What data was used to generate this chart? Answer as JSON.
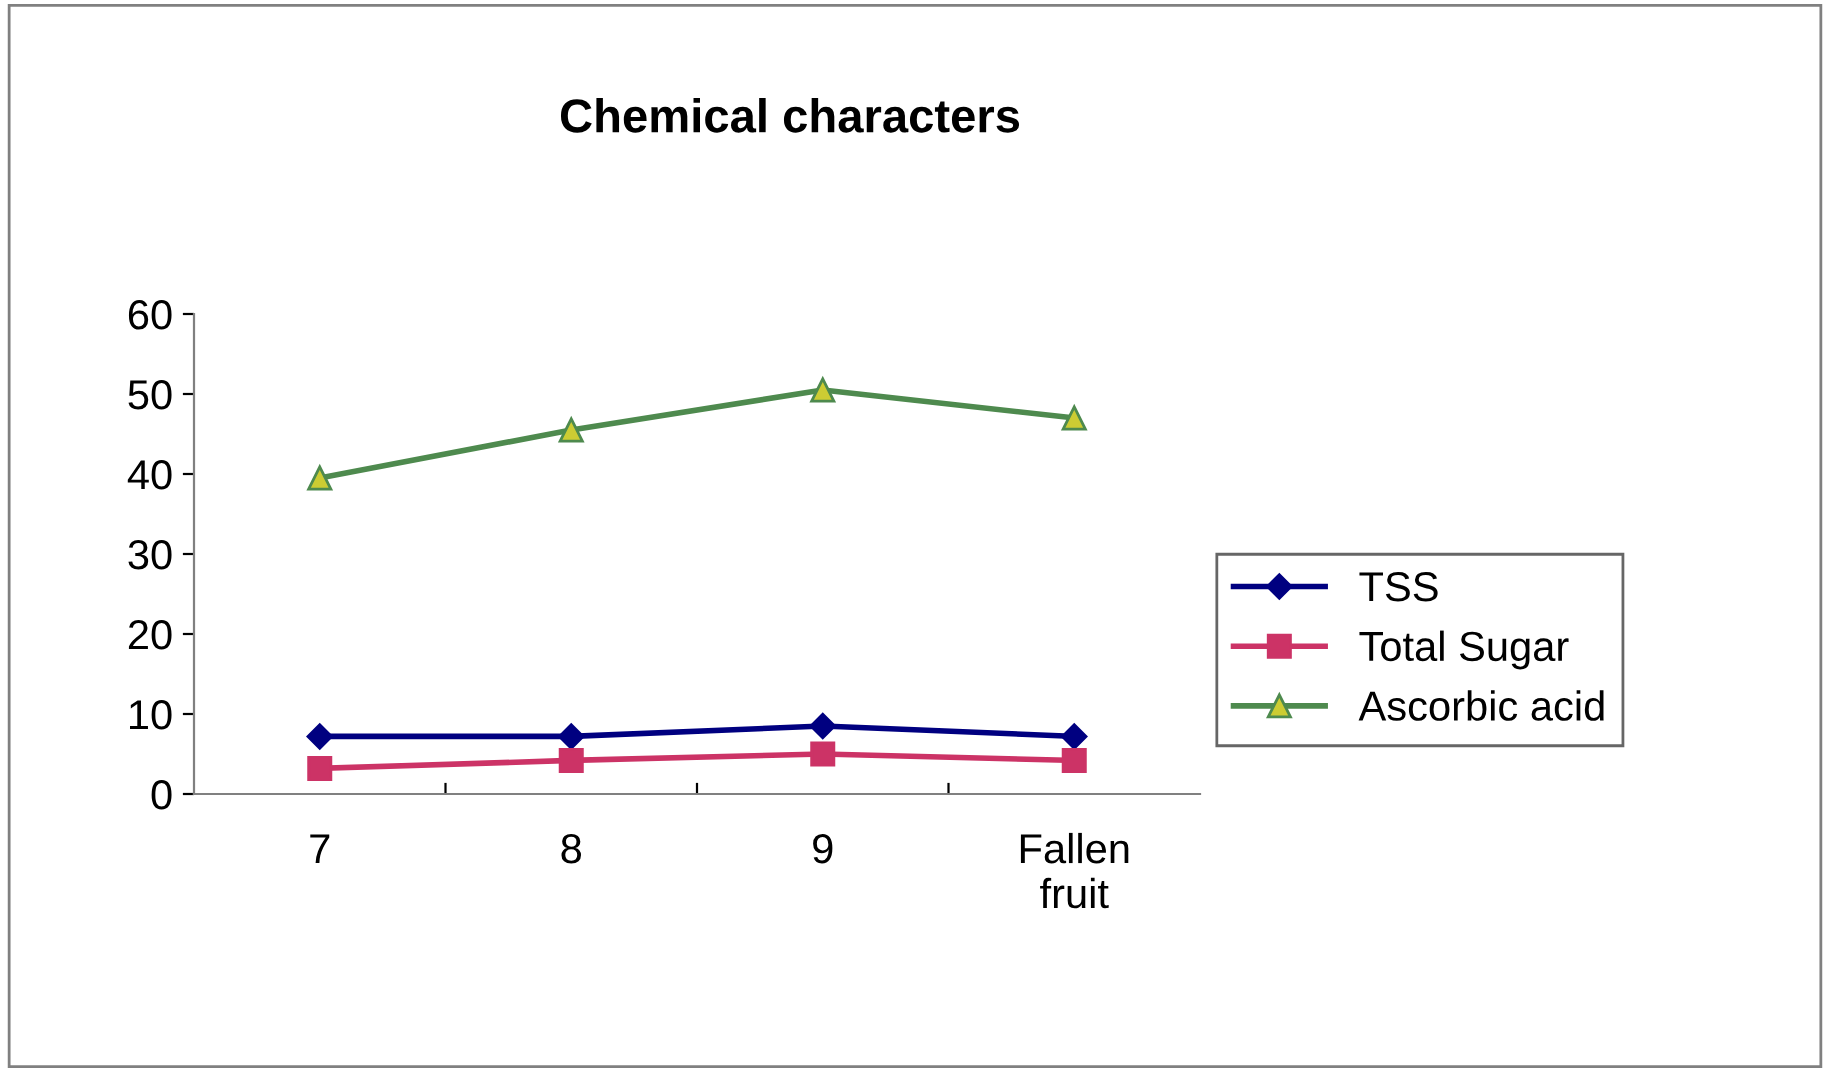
{
  "chart_data": {
    "type": "line",
    "title": "Chemical characters",
    "categories": [
      "7",
      "8",
      "9",
      "Fallen fruit"
    ],
    "series": [
      {
        "name": "TSS",
        "color": "#000080",
        "marker": "diamond",
        "values": [
          7.2,
          7.2,
          8.5,
          7.2
        ]
      },
      {
        "name": "Total Sugar",
        "color": "#cc3366",
        "marker": "square",
        "values": [
          3.2,
          4.2,
          5,
          4.2
        ]
      },
      {
        "name": "Ascorbic acid",
        "color": "#4e8a4e",
        "marker": "triangle",
        "values": [
          39.5,
          45.5,
          50.5,
          47
        ]
      }
    ],
    "ylim": [
      0,
      60
    ],
    "yticks": [
      0,
      10,
      20,
      30,
      40,
      50,
      60
    ],
    "grid": false,
    "legend": "right",
    "line_style": "solid"
  }
}
